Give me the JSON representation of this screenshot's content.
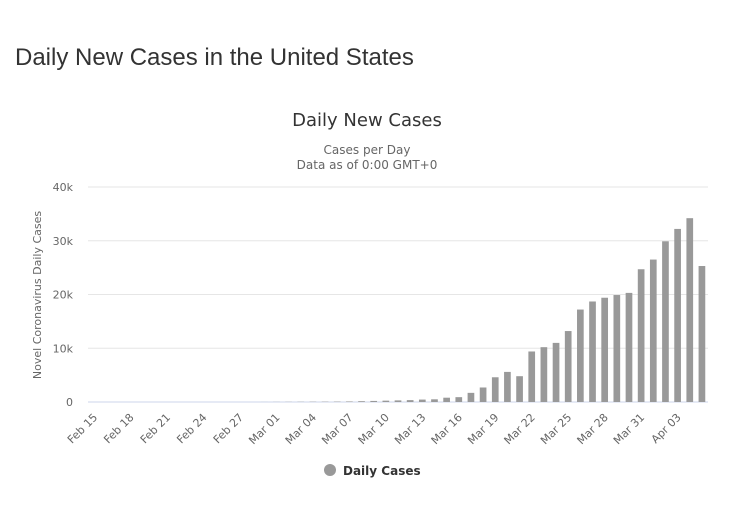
{
  "page": {
    "title": "Daily New Cases in the United States"
  },
  "colors": {
    "bar": "#999999",
    "grid": "#e6e6e6",
    "axis_text": "#666666",
    "title_text": "#333333"
  },
  "chart_data": {
    "type": "bar",
    "title": "Daily New Cases",
    "subtitle": "Cases per Day",
    "subtitle2": "Data as of 0:00 GMT+0",
    "ylabel": "Novel Coronavirus Daily Cases",
    "xlabel": "",
    "ylim": [
      0,
      40000
    ],
    "y_ticks": [
      0,
      10000,
      20000,
      30000,
      40000
    ],
    "y_tick_labels": [
      "0",
      "10k",
      "20k",
      "30k",
      "40k"
    ],
    "grid": true,
    "legend": "bottom-center",
    "tick_every": 3,
    "categories": [
      "Feb 15",
      "Feb 16",
      "Feb 17",
      "Feb 18",
      "Feb 19",
      "Feb 20",
      "Feb 21",
      "Feb 22",
      "Feb 23",
      "Feb 24",
      "Feb 25",
      "Feb 26",
      "Feb 27",
      "Feb 28",
      "Feb 29",
      "Mar 01",
      "Mar 02",
      "Mar 03",
      "Mar 04",
      "Mar 05",
      "Mar 06",
      "Mar 07",
      "Mar 08",
      "Mar 09",
      "Mar 10",
      "Mar 11",
      "Mar 12",
      "Mar 13",
      "Mar 14",
      "Mar 15",
      "Mar 16",
      "Mar 17",
      "Mar 18",
      "Mar 19",
      "Mar 20",
      "Mar 21",
      "Mar 22",
      "Mar 23",
      "Mar 24",
      "Mar 25",
      "Mar 26",
      "Mar 27",
      "Mar 28",
      "Mar 29",
      "Mar 30",
      "Mar 31",
      "Apr 01",
      "Apr 02",
      "Apr 03",
      "Apr 04",
      "Apr 05"
    ],
    "series": [
      {
        "name": "Daily Cases",
        "values": [
          0,
          0,
          0,
          0,
          0,
          0,
          0,
          0,
          0,
          0,
          0,
          0,
          0,
          0,
          10,
          20,
          30,
          40,
          50,
          60,
          70,
          100,
          150,
          200,
          250,
          300,
          350,
          450,
          500,
          800,
          900,
          1700,
          2700,
          4600,
          5600,
          4800,
          9400,
          10200,
          11000,
          13200,
          17200,
          18700,
          19400,
          19900,
          20300,
          24700,
          26500,
          29900,
          32200,
          34200,
          25300
        ]
      }
    ]
  }
}
